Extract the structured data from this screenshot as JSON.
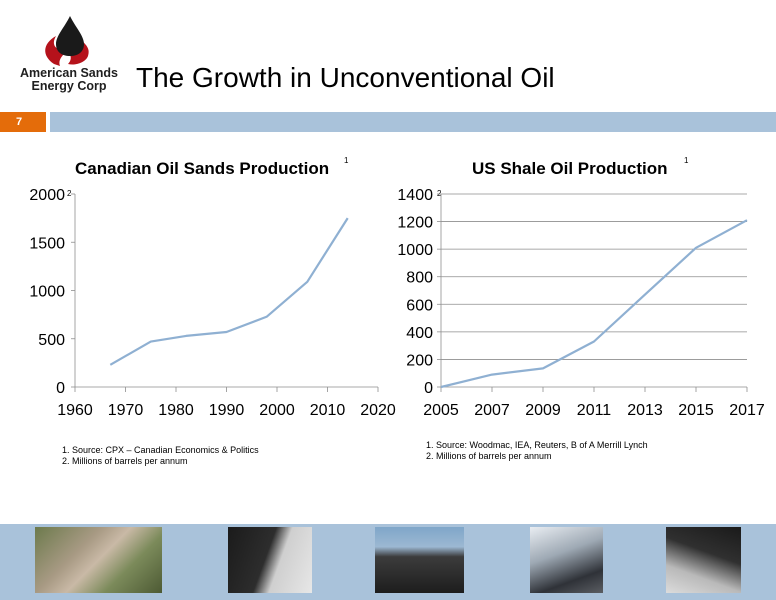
{
  "logo": {
    "line1": "American Sands",
    "line2": "Energy Corp",
    "colors": {
      "drop": "#1a1a1a",
      "flame": "#b5121b"
    }
  },
  "slide": {
    "title": "The Growth in Unconventional Oil",
    "page_number": "7"
  },
  "colors": {
    "accent": "#e46c0a",
    "band": "#a9c2da",
    "series_line": "#8fb0d2"
  },
  "chart_data": [
    {
      "type": "line",
      "title": "Canadian Oil Sands Production",
      "title_footnote": "1",
      "y_footnote": "2",
      "x_ticks": [
        "1960",
        "1970",
        "1980",
        "1990",
        "2000",
        "2010",
        "2020"
      ],
      "y_ticks": [
        "0",
        "500",
        "1000",
        "1500",
        "2000"
      ],
      "xlim": [
        1960,
        2020
      ],
      "ylim": [
        0,
        2000
      ],
      "grid": false,
      "series": [
        {
          "x": [
            1967,
            1975,
            1982,
            1990,
            1998,
            2006,
            2014
          ],
          "values": [
            230,
            470,
            530,
            570,
            730,
            1090,
            1750
          ]
        }
      ]
    },
    {
      "type": "line",
      "title": "US Shale Oil Production",
      "title_footnote": "1",
      "y_footnote": "2",
      "x_ticks": [
        "2005",
        "2007",
        "2009",
        "2011",
        "2013",
        "2015",
        "2017"
      ],
      "y_ticks": [
        "0",
        "200",
        "400",
        "600",
        "800",
        "1000",
        "1200",
        "1400"
      ],
      "xlim": [
        2005,
        2017
      ],
      "ylim": [
        0,
        1400
      ],
      "grid": true,
      "series": [
        {
          "x": [
            2005,
            2007,
            2009,
            2011,
            2013,
            2015,
            2017
          ],
          "values": [
            0,
            90,
            135,
            330,
            670,
            1010,
            1210
          ]
        }
      ]
    }
  ],
  "notes": {
    "left": [
      "1. Source: CPX – Canadian Economics & Politics",
      "2. Millions of barrels per annum"
    ],
    "right": [
      "1. Source: Woodmac, IEA, Reuters, B of A Merrill Lynch",
      "2. Millions of barrels per annum"
    ]
  },
  "photos": [
    "aerial-oil-sands-photo",
    "oil-sands-sample-photo",
    "refinery-equipment-photo",
    "workers-photo",
    "sand-pile-photo"
  ]
}
